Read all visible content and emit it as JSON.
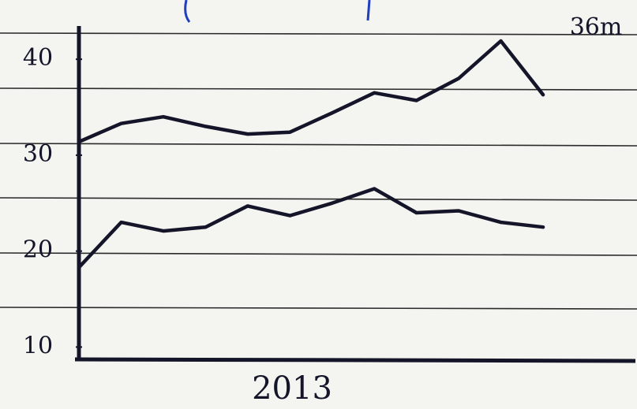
{
  "chart_data": {
    "type": "line",
    "annotation": "36m",
    "xlabel": "2013",
    "categories": [
      null,
      null,
      null,
      null,
      null,
      null,
      null,
      null,
      null,
      null,
      null,
      null
    ],
    "series": [
      {
        "color": "#15152a",
        "values": [
          31.4,
          33.3,
          34.0,
          33.0,
          32.2,
          32.4,
          34.4,
          36.5,
          35.7,
          38.0,
          41.9,
          36.3
        ]
      },
      {
        "color": "#15152a",
        "values": [
          18.3,
          23.0,
          22.1,
          22.5,
          24.7,
          23.7,
          25.0,
          26.5,
          24.0,
          24.2,
          23.0,
          22.5
        ]
      }
    ],
    "ylim": [
      8.8,
      43.3
    ],
    "yticks": [
      10,
      20,
      30,
      40
    ]
  }
}
